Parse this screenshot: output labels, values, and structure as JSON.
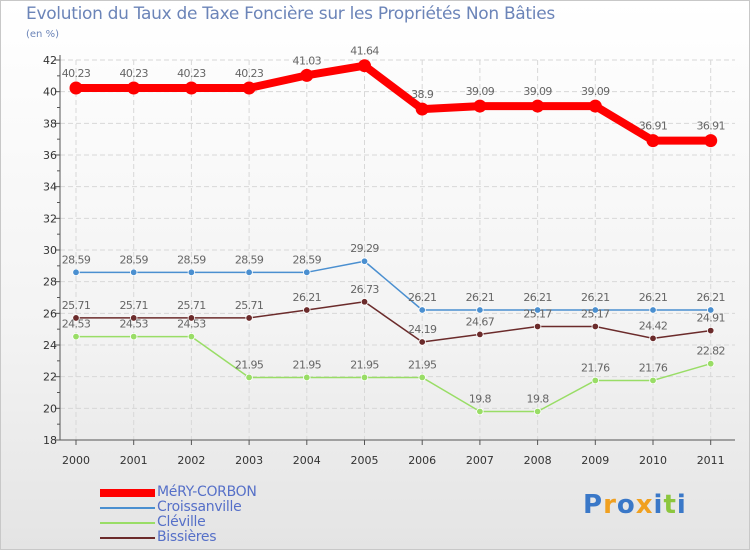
{
  "title": "Evolution du Taux de Taxe Foncière sur les Propriétés Non Bâties",
  "unit_label": "(en %)",
  "logo": {
    "letters": [
      "P",
      "r",
      "o",
      "x",
      "i",
      "t",
      "i"
    ],
    "colors": [
      "#3a78c8",
      "#f0a020",
      "#3a78c8",
      "#f0a020",
      "#3a78c8",
      "#8cc63e",
      "#3a78c8"
    ]
  },
  "chart_data": {
    "type": "line",
    "title": "Evolution du Taux de Taxe Foncière sur les Propriétés Non Bâties",
    "ylabel": "(en %)",
    "xlabel": "",
    "categories": [
      "2000",
      "2001",
      "2002",
      "2003",
      "2004",
      "2005",
      "2006",
      "2007",
      "2008",
      "2009",
      "2010",
      "2011"
    ],
    "ylim": [
      18,
      42
    ],
    "yticks": [
      18,
      20,
      22,
      24,
      26,
      28,
      30,
      32,
      34,
      36,
      38,
      40,
      42
    ],
    "series": [
      {
        "name": "MéRY-CORBON",
        "color": "#ff0000",
        "values": [
          40.23,
          40.23,
          40.23,
          40.23,
          41.03,
          41.64,
          38.9,
          39.09,
          39.09,
          39.09,
          36.91,
          36.91
        ],
        "labels": [
          "40.23",
          "40.23",
          "40.23",
          "40.23",
          "41.03",
          "41.64",
          "38.9",
          "39.09",
          "39.09",
          "39.09",
          "36.91",
          "36.91"
        ]
      },
      {
        "name": "Croissanville",
        "color": "#4a8fd0",
        "values": [
          28.59,
          28.59,
          28.59,
          28.59,
          28.59,
          29.29,
          26.21,
          26.21,
          26.21,
          26.21,
          26.21,
          26.21
        ],
        "labels": [
          "28.59",
          "28.59",
          "28.59",
          "28.59",
          "28.59",
          "29.29",
          "26.21",
          "26.21",
          "26.21",
          "26.21",
          "26.21",
          "26.21"
        ]
      },
      {
        "name": "Cléville",
        "color": "#99dd66",
        "values": [
          24.53,
          24.53,
          24.53,
          21.95,
          21.95,
          21.95,
          21.95,
          19.8,
          19.8,
          21.76,
          21.76,
          22.82
        ],
        "labels": [
          "24.53",
          "24.53",
          "24.53",
          "21.95",
          "21.95",
          "21.95",
          "21.95",
          "19.8",
          "19.8",
          "21.76",
          "21.76",
          "22.82"
        ]
      },
      {
        "name": "Bissières",
        "color": "#6b2b2b",
        "values": [
          25.71,
          25.71,
          25.71,
          25.71,
          26.21,
          26.73,
          24.19,
          24.67,
          25.17,
          25.17,
          24.42,
          24.91
        ],
        "labels": [
          "25.71",
          "25.71",
          "25.71",
          "25.71",
          "26.21",
          "26.73",
          "24.19",
          "24.67",
          "25.17",
          "25.17",
          "24.42",
          "24.91"
        ]
      }
    ]
  }
}
